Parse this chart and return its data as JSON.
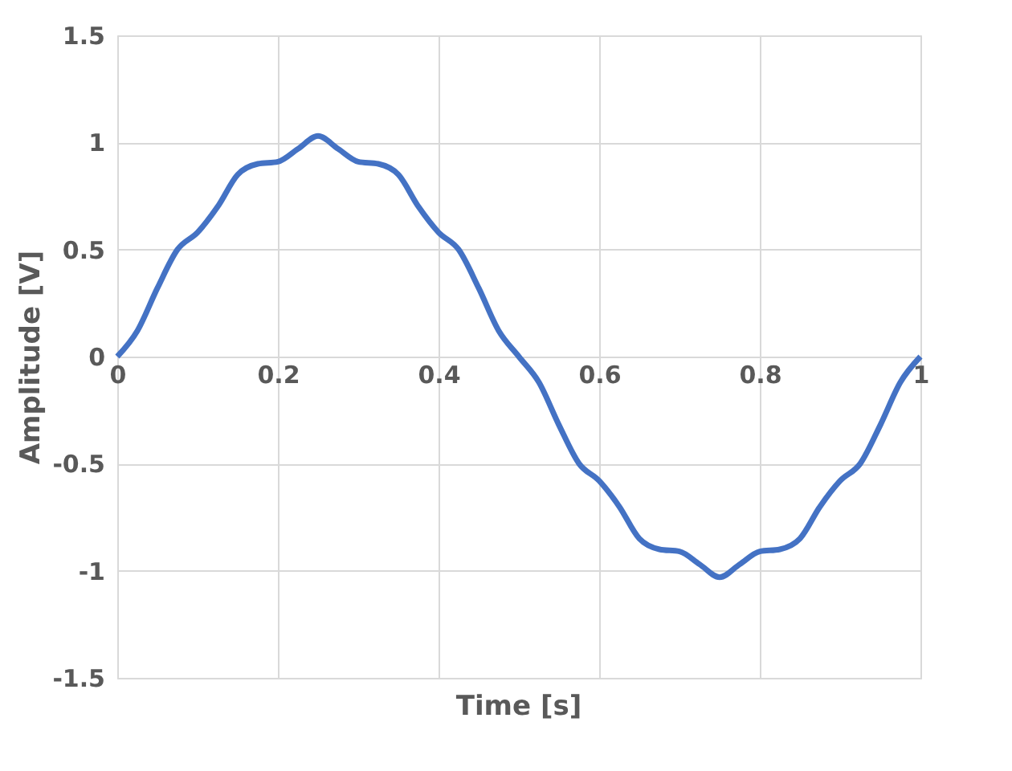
{
  "chart_data": {
    "type": "line",
    "xlabel": "Time [s]",
    "ylabel": "Amplitude [V]",
    "x": [
      0,
      0.025,
      0.05,
      0.075,
      0.1,
      0.125,
      0.15,
      0.175,
      0.2,
      0.225,
      0.25,
      0.275,
      0.3,
      0.325,
      0.35,
      0.375,
      0.4,
      0.425,
      0.45,
      0.475,
      0.5,
      0.525,
      0.55,
      0.575,
      0.6,
      0.625,
      0.65,
      0.675,
      0.7,
      0.725,
      0.75,
      0.775,
      0.8,
      0.825,
      0.85,
      0.875,
      0.9,
      0.925,
      0.95,
      0.975,
      1
    ],
    "series": [
      {
        "color": "#4472c4",
        "values": [
          0,
          0.12,
          0.32,
          0.5,
          0.58,
          0.7,
          0.85,
          0.9,
          0.91,
          0.97,
          1.03,
          0.97,
          0.91,
          0.9,
          0.85,
          0.7,
          0.58,
          0.5,
          0.32,
          0.12,
          0,
          -0.12,
          -0.32,
          -0.5,
          -0.58,
          -0.7,
          -0.85,
          -0.9,
          -0.91,
          -0.97,
          -1.03,
          -0.97,
          -0.91,
          -0.9,
          -0.85,
          -0.7,
          -0.58,
          -0.5,
          -0.32,
          -0.12,
          0
        ]
      }
    ],
    "xlim": [
      0,
      1
    ],
    "xticks": [
      0,
      0.2,
      0.4,
      0.6,
      0.8,
      1
    ],
    "ylim": [
      -1.5,
      1.5
    ],
    "yticks": [
      -1.5,
      -1,
      -0.5,
      0,
      0.5,
      1,
      1.5
    ],
    "grid": true,
    "marker": "none",
    "line_style": "solid"
  }
}
